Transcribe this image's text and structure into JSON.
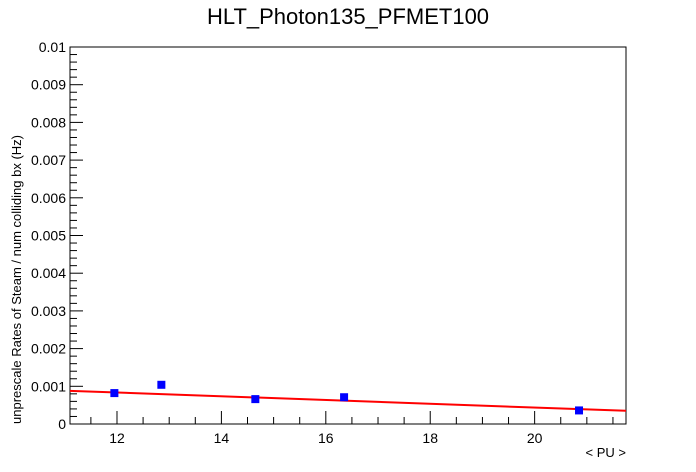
{
  "chart_data": {
    "type": "scatter",
    "title": "HLT_Photon135_PFMET100",
    "xlabel": "< PU >",
    "ylabel": "unprescale Rates of Steam / num colliding bx (Hz)",
    "xlim": [
      11.1,
      21.75
    ],
    "ylim": [
      0,
      0.01
    ],
    "x_ticks": [
      12,
      14,
      16,
      18,
      20
    ],
    "x_tick_labels": [
      "12",
      "14",
      "16",
      "18",
      "20"
    ],
    "y_ticks": [
      0,
      0.001,
      0.002,
      0.003,
      0.004,
      0.005,
      0.006,
      0.007,
      0.008,
      0.009,
      0.01
    ],
    "y_tick_labels": [
      "0",
      "0.001",
      "0.002",
      "0.003",
      "0.004",
      "0.005",
      "0.006",
      "0.007",
      "0.008",
      "0.009",
      "0.01"
    ],
    "grid": false,
    "series": [
      {
        "kind": "points",
        "color": "#0000ff",
        "x": [
          11.95,
          12.85,
          14.65,
          16.35,
          20.85
        ],
        "y": [
          0.00082,
          0.00104,
          0.00066,
          0.00071,
          0.00036
        ],
        "yerr": [
          4e-05,
          6e-05,
          4e-05,
          4e-05,
          4e-05
        ]
      },
      {
        "kind": "fit-line",
        "color": "#ff0000",
        "x": [
          11.1,
          21.75
        ],
        "y": [
          0.00088,
          0.00035
        ]
      }
    ]
  }
}
